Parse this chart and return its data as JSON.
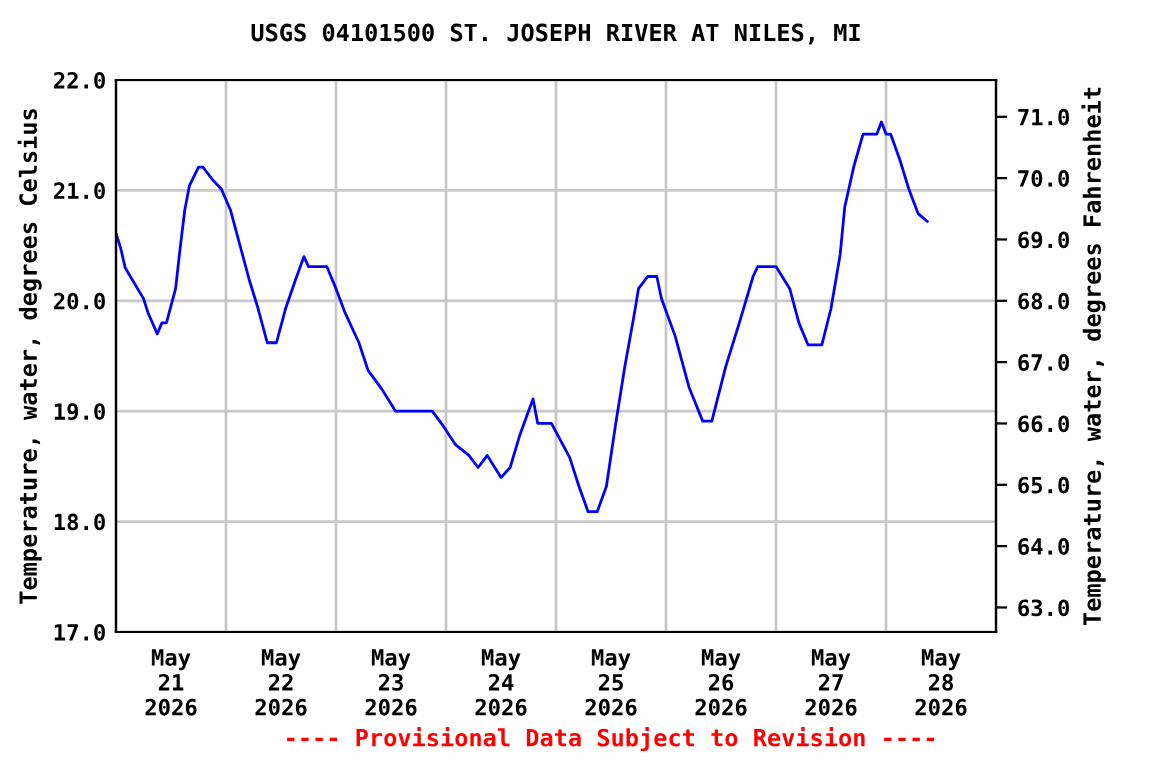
{
  "chart_data": {
    "type": "line",
    "title": "USGS 04101500 ST. JOSEPH RIVER AT NILES, MI",
    "ylabel": "Temperature, water, degrees Celsius",
    "y2label": "Temperature, water, degrees Fahrenheit",
    "annotations": [
      "---- Provisional Data Subject to Revision ----"
    ],
    "x": [
      "2026-05-21T00:00",
      "2026-05-21T01:00",
      "2026-05-21T02:00",
      "2026-05-21T06:00",
      "2026-05-21T07:00",
      "2026-05-21T09:00",
      "2026-05-21T10:00",
      "2026-05-21T11:00",
      "2026-05-21T13:00",
      "2026-05-21T14:00",
      "2026-05-21T15:00",
      "2026-05-21T16:00",
      "2026-05-21T18:00",
      "2026-05-21T19:00",
      "2026-05-21T21:00",
      "2026-05-21T23:00",
      "2026-05-22T01:00",
      "2026-05-22T03:00",
      "2026-05-22T05:00",
      "2026-05-22T07:00",
      "2026-05-22T09:00",
      "2026-05-22T11:00",
      "2026-05-22T13:00",
      "2026-05-22T15:00",
      "2026-05-22T17:00",
      "2026-05-22T18:00",
      "2026-05-22T22:00",
      "2026-05-23T00:00",
      "2026-05-23T02:00",
      "2026-05-23T05:00",
      "2026-05-23T07:00",
      "2026-05-23T10:00",
      "2026-05-23T13:00",
      "2026-05-23T21:00",
      "2026-05-23T23:00",
      "2026-05-24T02:00",
      "2026-05-24T05:00",
      "2026-05-24T07:00",
      "2026-05-24T09:00",
      "2026-05-24T12:00",
      "2026-05-24T14:00",
      "2026-05-24T16:00",
      "2026-05-24T18:00",
      "2026-05-24T19:00",
      "2026-05-24T20:00",
      "2026-05-24T23:00",
      "2026-05-25T03:00",
      "2026-05-25T05:00",
      "2026-05-25T07:00",
      "2026-05-25T09:00",
      "2026-05-25T11:00",
      "2026-05-25T13:00",
      "2026-05-25T15:00",
      "2026-05-25T17:00",
      "2026-05-25T18:00",
      "2026-05-25T20:00",
      "2026-05-25T22:00",
      "2026-05-25T23:00",
      "2026-05-26T02:00",
      "2026-05-26T05:00",
      "2026-05-26T08:00",
      "2026-05-26T10:00",
      "2026-05-26T13:00",
      "2026-05-26T16:00",
      "2026-05-26T19:00",
      "2026-05-26T20:00",
      "2026-05-27T00:00",
      "2026-05-27T03:00",
      "2026-05-27T05:00",
      "2026-05-27T07:00",
      "2026-05-27T10:00",
      "2026-05-27T12:00",
      "2026-05-27T14:00",
      "2026-05-27T15:00",
      "2026-05-27T17:00",
      "2026-05-27T19:00",
      "2026-05-27T22:00",
      "2026-05-27T23:00",
      "2026-05-28T00:00",
      "2026-05-28T01:00",
      "2026-05-28T03:00",
      "2026-05-28T05:00",
      "2026-05-28T07:00",
      "2026-05-28T09:00"
    ],
    "series": [
      {
        "color": "#0000ff",
        "values": [
          20.61,
          20.48,
          20.3,
          20.02,
          19.89,
          19.7,
          19.8,
          19.8,
          20.11,
          20.48,
          20.82,
          21.04,
          21.21,
          21.21,
          21.1,
          21.01,
          20.82,
          20.51,
          20.2,
          19.93,
          19.62,
          19.62,
          19.93,
          20.17,
          20.4,
          20.31,
          20.31,
          20.11,
          19.89,
          19.62,
          19.37,
          19.2,
          19.0,
          19.0,
          18.89,
          18.7,
          18.6,
          18.49,
          18.6,
          18.4,
          18.49,
          18.77,
          19.0,
          19.11,
          18.89,
          18.89,
          18.58,
          18.32,
          18.09,
          18.09,
          18.32,
          18.88,
          19.4,
          19.86,
          20.11,
          20.22,
          20.22,
          20.02,
          19.68,
          19.22,
          18.91,
          18.91,
          19.4,
          19.8,
          20.22,
          20.31,
          20.31,
          20.11,
          19.8,
          19.6,
          19.6,
          19.93,
          20.42,
          20.85,
          21.22,
          21.51,
          21.51,
          21.62,
          21.51,
          21.51,
          21.28,
          21.01,
          20.79,
          20.72
        ]
      }
    ],
    "xlim": [
      "2026-05-21T00:00",
      "2026-05-29T00:00"
    ],
    "xticks": [
      {
        "value": "2026-05-21T12:00",
        "label": "May\n21\n2026"
      },
      {
        "value": "2026-05-22T12:00",
        "label": "May\n22\n2026"
      },
      {
        "value": "2026-05-23T12:00",
        "label": "May\n23\n2026"
      },
      {
        "value": "2026-05-24T12:00",
        "label": "May\n24\n2026"
      },
      {
        "value": "2026-05-25T12:00",
        "label": "May\n25\n2026"
      },
      {
        "value": "2026-05-26T12:00",
        "label": "May\n26\n2026"
      },
      {
        "value": "2026-05-27T12:00",
        "label": "May\n27\n2026"
      },
      {
        "value": "2026-05-28T12:00",
        "label": "May\n28\n2026"
      },
      {
        "value": "2026-05-22T00:00",
        "label": null
      },
      {
        "value": "2026-05-23T00:00",
        "label": null
      },
      {
        "value": "2026-05-24T00:00",
        "label": null
      },
      {
        "value": "2026-05-25T00:00",
        "label": null
      },
      {
        "value": "2026-05-26T00:00",
        "label": null
      },
      {
        "value": "2026-05-27T00:00",
        "label": null
      },
      {
        "value": "2026-05-28T00:00",
        "label": null
      }
    ],
    "ylim": [
      17.0,
      22.0
    ],
    "yticks": [
      {
        "value": 17,
        "label": "17.0"
      },
      {
        "value": 18,
        "label": "18.0"
      },
      {
        "value": 19,
        "label": "19.0"
      },
      {
        "value": 20,
        "label": "20.0"
      },
      {
        "value": 21,
        "label": "21.0"
      },
      {
        "value": 22,
        "label": "22.0"
      }
    ],
    "y2lim": [
      62.6,
      71.6
    ],
    "y2ticks": [
      {
        "value": 63,
        "label": "63.0"
      },
      {
        "value": 64,
        "label": "64.0"
      },
      {
        "value": 65,
        "label": "65.0"
      },
      {
        "value": 66,
        "label": "66.0"
      },
      {
        "value": 67,
        "label": "67.0"
      },
      {
        "value": 68,
        "label": "68.0"
      },
      {
        "value": 69,
        "label": "69.0"
      },
      {
        "value": 70,
        "label": "70.0"
      },
      {
        "value": 71,
        "label": "71.0"
      }
    ],
    "grid": true
  }
}
